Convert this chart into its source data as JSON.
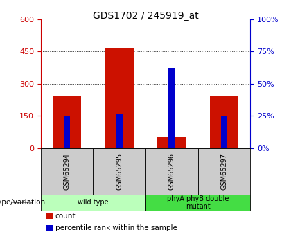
{
  "title": "GDS1702 / 245919_at",
  "samples": [
    "GSM65294",
    "GSM65295",
    "GSM65296",
    "GSM65297"
  ],
  "count_values": [
    240,
    465,
    50,
    240
  ],
  "percentile_values": [
    25,
    27,
    62,
    25
  ],
  "left_ylim": [
    0,
    600
  ],
  "left_yticks": [
    0,
    150,
    300,
    450,
    600
  ],
  "right_ylim": [
    0,
    100
  ],
  "right_yticks": [
    0,
    25,
    50,
    75,
    100
  ],
  "left_axis_color": "#cc0000",
  "right_axis_color": "#0000cc",
  "bar_color_count": "#cc1100",
  "bar_color_pct": "#0000cc",
  "groups": [
    {
      "label": "wild type",
      "indices": [
        0,
        1
      ],
      "color": "#bbffbb"
    },
    {
      "label": "phyA phyB double\nmutant",
      "indices": [
        2,
        3
      ],
      "color": "#44dd44"
    }
  ],
  "group_label_prefix": "genotype/variation",
  "legend_items": [
    {
      "color": "#cc1100",
      "label": "count"
    },
    {
      "color": "#0000cc",
      "label": "percentile rank within the sample"
    }
  ],
  "bg_color_sample_box": "#cccccc",
  "dotted_grid_color": "#333333",
  "title_fontsize": 10,
  "tick_fontsize": 8,
  "red_bar_width": 0.55,
  "blue_bar_width": 0.12
}
